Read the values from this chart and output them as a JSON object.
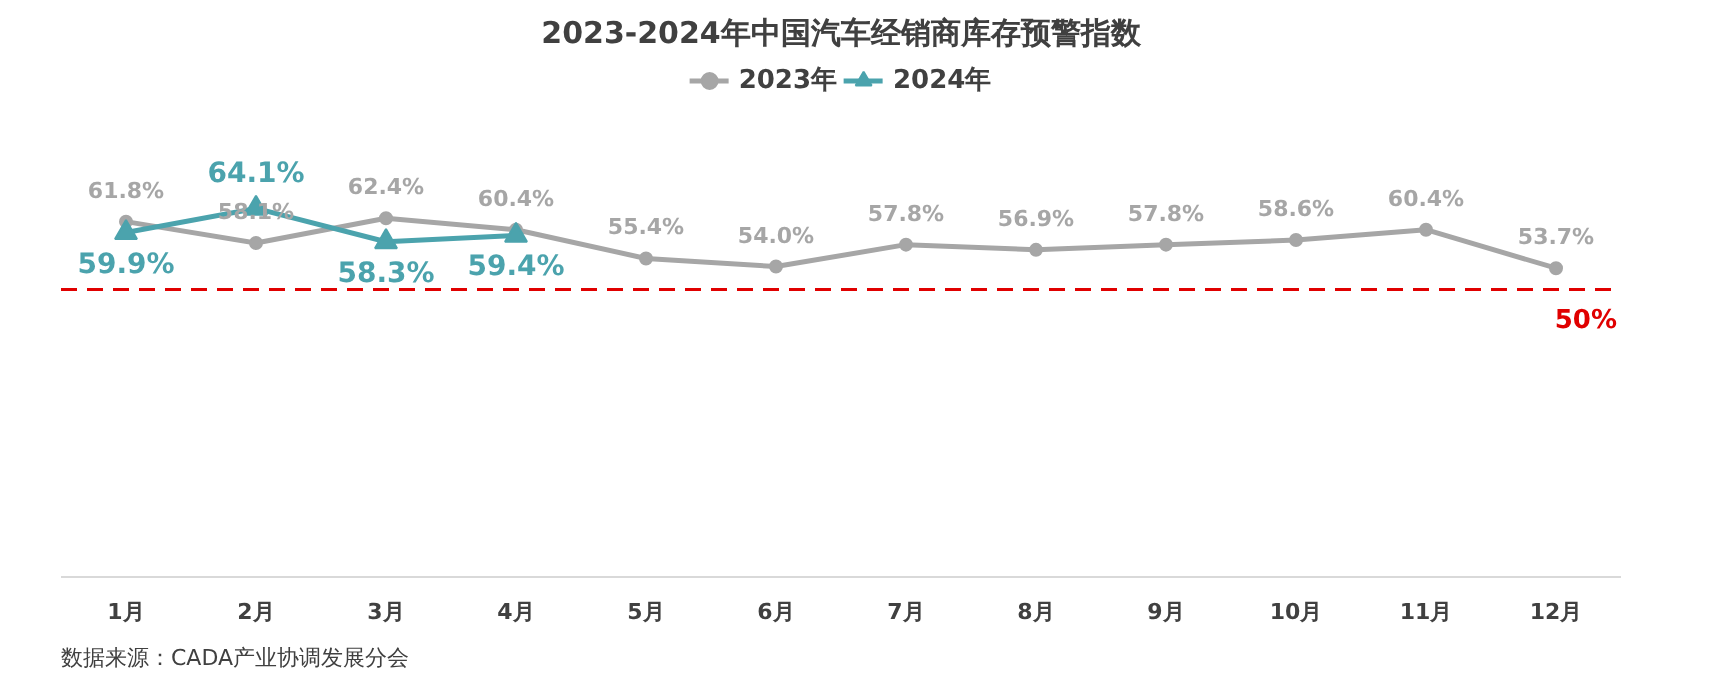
{
  "chart_data": {
    "type": "line",
    "title": "2023-2024年中国汽车经销商库存预警指数",
    "categories": [
      "1月",
      "2月",
      "3月",
      "4月",
      "5月",
      "6月",
      "7月",
      "8月",
      "9月",
      "10月",
      "11月",
      "12月"
    ],
    "series": [
      {
        "name": "2023年",
        "color": "#a6a6a6",
        "marker": "circle",
        "values": [
          61.8,
          58.1,
          62.4,
          60.4,
          55.4,
          54.0,
          57.8,
          56.9,
          57.8,
          58.6,
          60.4,
          53.7
        ],
        "value_labels": [
          "61.8%",
          "58.1%",
          "62.4%",
          "60.4%",
          "55.4%",
          "54.0%",
          "57.8%",
          "56.9%",
          "57.8%",
          "58.6%",
          "60.4%",
          "53.7%"
        ]
      },
      {
        "name": "2024年",
        "color": "#4ba3ad",
        "marker": "triangle",
        "values": [
          59.9,
          64.1,
          58.3,
          59.4,
          null,
          null,
          null,
          null,
          null,
          null,
          null,
          null
        ],
        "value_labels": [
          "59.9%",
          "64.1%",
          "58.3%",
          "59.4%",
          null,
          null,
          null,
          null,
          null,
          null,
          null,
          null
        ]
      }
    ],
    "tick_labels": "x",
    "legend": "top",
    "ref_lines": [
      {
        "axis": "y",
        "value": 50,
        "label": "50%",
        "color": "#e00000",
        "line_style": "dashed"
      }
    ],
    "annotations": [
      "数据来源：CADA产业协调发展分会"
    ]
  }
}
